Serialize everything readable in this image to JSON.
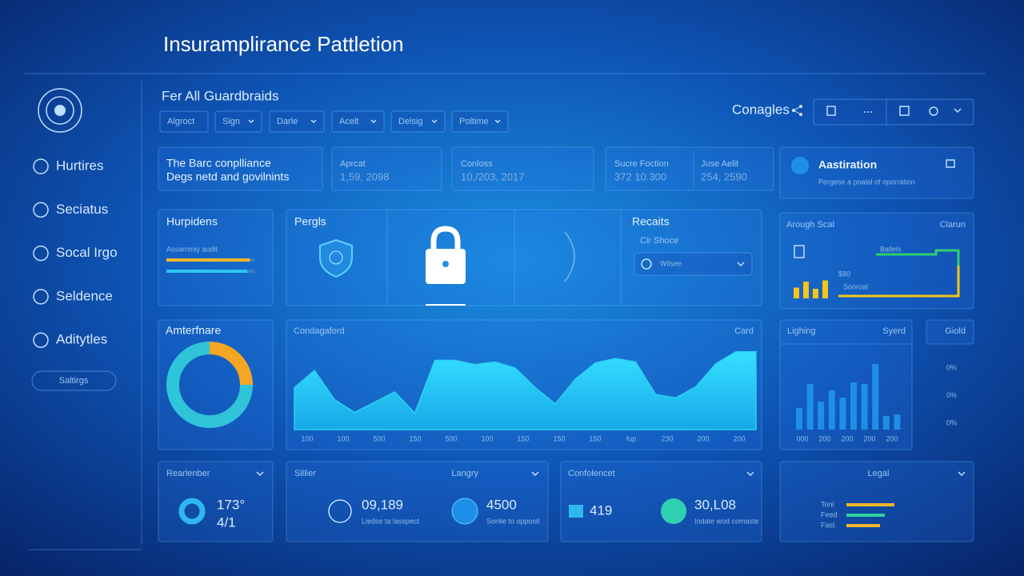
{
  "header": {
    "title": "Insuramplirance Pattletion"
  },
  "sidebar": {
    "items": [
      "Hurtires",
      "Seciatus",
      "Socal Irgo",
      "Seldence",
      "Aditytles"
    ],
    "button": "Saltirgs"
  },
  "toolbar": {
    "heading": "Fer All Guardbraids",
    "filters": [
      "Algroct",
      "Sign",
      "Darle",
      "Acelt",
      "Delsig",
      "Poltime"
    ],
    "action": "Conagles"
  },
  "stats": [
    {
      "label": "The Barc conplliance",
      "value": "Degs netd and govilnints"
    },
    {
      "label": "Aprcat",
      "value": "1,59, 2098"
    },
    {
      "label": "Conloss",
      "value": "10,/203, 2017"
    },
    {
      "label": "Sucre Foction",
      "value": "372 10.300"
    },
    {
      "label": "Juse Aelit",
      "value": "254, 2590"
    }
  ],
  "alert": {
    "title": "Aastiration",
    "text": "Pergese a poalal of oporration"
  },
  "audit_panel": {
    "title": "Hurpidens",
    "label": "Assarnmiy audit",
    "bars": [
      95,
      92
    ],
    "colors": [
      "#f5b62a",
      "#2fc4f0"
    ]
  },
  "security_panel": {
    "title": "Pergls"
  },
  "reports": {
    "title": "Recaits",
    "subtitle": "Cir Shoce",
    "select": "Wilsee"
  },
  "trend_panel": {
    "title": "Arough Scal",
    "action": "Clarun",
    "amount": "$80",
    "caption": "Sonroal",
    "legend": "Ballels",
    "bars": [
      45,
      70,
      40,
      75
    ],
    "color": "#f5c518"
  },
  "donut_panel": {
    "title": "Amterfnare",
    "values": [
      25,
      75
    ],
    "colors": [
      "#f5a623",
      "#2fc4d8"
    ]
  },
  "area_chart": {
    "title": "Condagaford",
    "action": "Card",
    "x_labels": [
      "100",
      "100",
      "500",
      "150",
      "500",
      "100",
      "150",
      "150",
      "150",
      "fup",
      "230",
      "200",
      "200"
    ],
    "ylim": [
      0,
      100
    ],
    "values": [
      49,
      69,
      35,
      20,
      32,
      44,
      19,
      81,
      81,
      76,
      79,
      72,
      49,
      30,
      59,
      78,
      83,
      79,
      41,
      37,
      50,
      77,
      91,
      91
    ],
    "color": "#2bd2f5"
  },
  "bar_chart": {
    "title": "Lighing",
    "action": "Syerd",
    "x_labels": [
      "000",
      "200",
      "200",
      "200",
      "200"
    ],
    "ylim": [
      0,
      100
    ],
    "values": [
      27,
      57,
      35,
      49,
      40,
      59,
      57,
      82,
      17,
      19
    ],
    "color": "#1e8fe8"
  },
  "gold_panel": {
    "title": "Giold",
    "labels": [
      "0%",
      "0%",
      "0%"
    ]
  },
  "reminder": {
    "title": "Rearlenber",
    "value": "173°",
    "sub": "4/1"
  },
  "sillier": {
    "title": "Sillier",
    "value": "09,189",
    "text": "Lledse ta lasspect"
  },
  "langry": {
    "title": "Langry",
    "value": "4500",
    "text": "Sonlie to opposit"
  },
  "conference": {
    "title": "Confolencet",
    "value": "419",
    "value2": "30,L08",
    "text": "Indate wod comaste"
  },
  "legal": {
    "title": "Legal",
    "rows": [
      "Tonl",
      "Feed",
      "Fast"
    ],
    "values": [
      60,
      48,
      42
    ],
    "colors": [
      "#f5b62a",
      "#2fd0a0",
      "#f5b62a"
    ]
  }
}
